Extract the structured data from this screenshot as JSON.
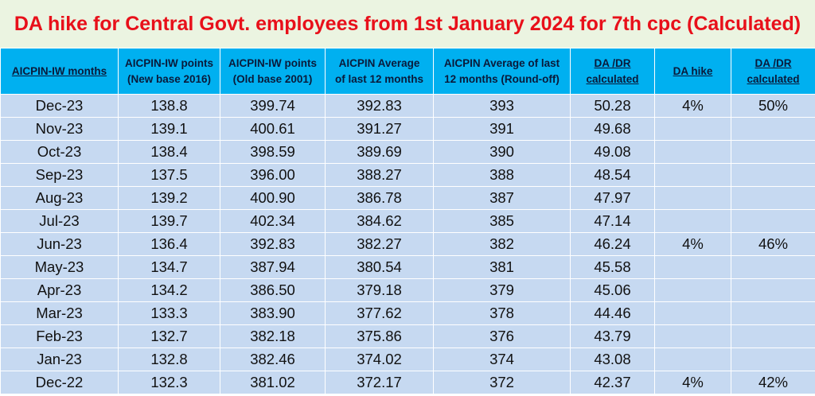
{
  "header": {
    "title": "DA hike for Central Govt. employees from 1st January 2024 for 7th cpc (Calculated)"
  },
  "table": {
    "columns": [
      [
        "AICPIN-IW months"
      ],
      [
        "AICPIN-IW points",
        "(New base 2016)"
      ],
      [
        "AICPIN-IW points",
        "(Old base 2001)"
      ],
      [
        "AICPIN Average",
        "of last 12 months"
      ],
      [
        "AICPIN Average of last",
        "12 months (Round-off)"
      ],
      [
        "DA /DR",
        "calculated"
      ],
      [
        "DA hike"
      ],
      [
        "DA /DR",
        "calculated"
      ]
    ],
    "rows": [
      [
        "Dec-23",
        "138.8",
        "399.74",
        "392.83",
        "393",
        "50.28",
        "4%",
        "50%"
      ],
      [
        "Nov-23",
        "139.1",
        "400.61",
        "391.27",
        "391",
        "49.68",
        null,
        null
      ],
      [
        "Oct-23",
        "138.4",
        "398.59",
        "389.69",
        "390",
        "49.08",
        null,
        null
      ],
      [
        "Sep-23",
        "137.5",
        "396.00",
        "388.27",
        "388",
        "48.54",
        null,
        null
      ],
      [
        "Aug-23",
        "139.2",
        "400.90",
        "386.78",
        "387",
        "47.97",
        null,
        null
      ],
      [
        "Jul-23",
        "139.7",
        "402.34",
        "384.62",
        "385",
        "47.14",
        null,
        null
      ],
      [
        "Jun-23",
        "136.4",
        "392.83",
        "382.27",
        "382",
        "46.24",
        "4%",
        "46%"
      ],
      [
        "May-23",
        "134.7",
        "387.94",
        "380.54",
        "381",
        "45.58",
        null,
        null
      ],
      [
        "Apr-23",
        "134.2",
        "386.50",
        "379.18",
        "379",
        "45.06",
        null,
        null
      ],
      [
        "Mar-23",
        "133.3",
        "383.90",
        "377.62",
        "378",
        "44.46",
        null,
        null
      ],
      [
        "Feb-23",
        "132.7",
        "382.18",
        "375.86",
        "376",
        "43.79",
        null,
        null
      ],
      [
        "Jan-23",
        "132.8",
        "382.46",
        "374.02",
        "374",
        "43.08",
        null,
        null
      ],
      [
        "Dec-22",
        "132.3",
        "381.02",
        "372.17",
        "372",
        "42.37",
        "4%",
        "42%"
      ]
    ]
  }
}
